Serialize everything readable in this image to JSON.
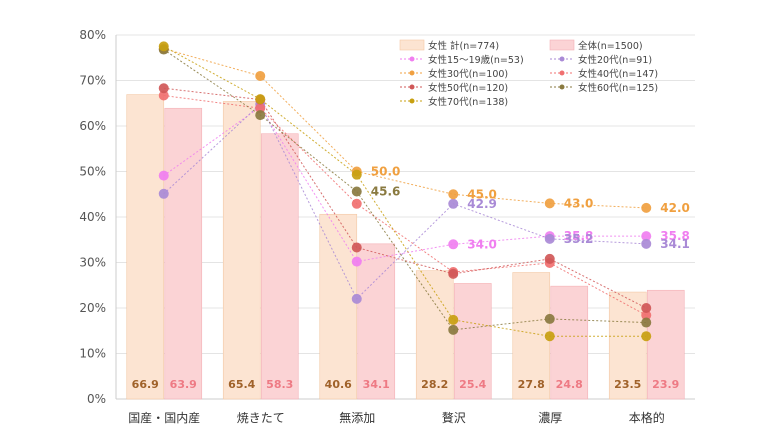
{
  "chart_data": {
    "type": "bar",
    "title": "",
    "xlabel": "",
    "ylabel": "",
    "ylim": [
      0,
      80
    ],
    "yticks": [
      "0%",
      "10%",
      "20%",
      "30%",
      "40%",
      "50%",
      "60%",
      "70%",
      "80%"
    ],
    "categories": [
      "国産・国内産",
      "焼きたて",
      "無添加",
      "贅沢",
      "濃厚",
      "本格的"
    ],
    "grid": true,
    "legend_position": "top-right",
    "bar_series": [
      {
        "name": "女性 計(n=774)",
        "values": [
          66.9,
          65.4,
          40.6,
          28.2,
          27.8,
          23.5
        ],
        "labels": [
          "66.9",
          "65.4",
          "40.6",
          "28.2",
          "27.8",
          "23.5"
        ],
        "color": "#fce4d2",
        "label_color": "#a0622a"
      },
      {
        "name": "全体(n=1500)",
        "values": [
          63.9,
          58.3,
          34.1,
          25.4,
          24.8,
          23.9
        ],
        "labels": [
          "63.9",
          "58.3",
          "34.1",
          "25.4",
          "24.8",
          "23.9"
        ],
        "color": "#fbd3d5",
        "label_color": "#ee7a84"
      }
    ],
    "line_series": [
      {
        "name": "女性15～19歳(n=53)",
        "values": [
          49.1,
          64.2,
          30.2,
          34.0,
          35.8,
          35.8
        ],
        "color": "#f07ef0",
        "labels": [
          "",
          "",
          "",
          "34.0",
          "35.8",
          "35.8"
        ]
      },
      {
        "name": "女性20代(n=91)",
        "values": [
          45.1,
          64.8,
          22.0,
          42.9,
          35.2,
          34.1
        ],
        "color": "#a98ad6",
        "labels": [
          "",
          "",
          "",
          "42.9",
          "35.2",
          "34.1"
        ]
      },
      {
        "name": "女性30代(n=100)",
        "values": [
          77.0,
          71.0,
          50.0,
          45.0,
          43.0,
          42.0
        ],
        "color": "#f0a040",
        "labels": [
          "",
          "",
          "50.0",
          "45.0",
          "43.0",
          "42.0"
        ]
      },
      {
        "name": "女性40代(n=147)",
        "values": [
          66.7,
          63.9,
          42.9,
          27.9,
          29.9,
          18.4
        ],
        "color": "#f07070",
        "labels": [
          "",
          "",
          "",
          "",
          "",
          ""
        ]
      },
      {
        "name": "女性50代(n=120)",
        "values": [
          68.3,
          65.8,
          33.3,
          27.5,
          30.8,
          20.0
        ],
        "color": "#d05858",
        "labels": [
          "",
          "",
          "",
          "",
          "",
          ""
        ]
      },
      {
        "name": "女性60代(n=125)",
        "values": [
          76.8,
          62.4,
          45.6,
          15.2,
          17.6,
          16.8
        ],
        "color": "#8a7a40",
        "labels": [
          "",
          "",
          "45.6",
          "",
          "",
          ""
        ]
      },
      {
        "name": "女性70代(n=138)",
        "values": [
          77.5,
          65.9,
          49.3,
          17.4,
          13.8,
          13.8
        ],
        "color": "#c8a010",
        "labels": [
          "",
          "",
          "",
          "",
          "",
          ""
        ]
      }
    ]
  }
}
